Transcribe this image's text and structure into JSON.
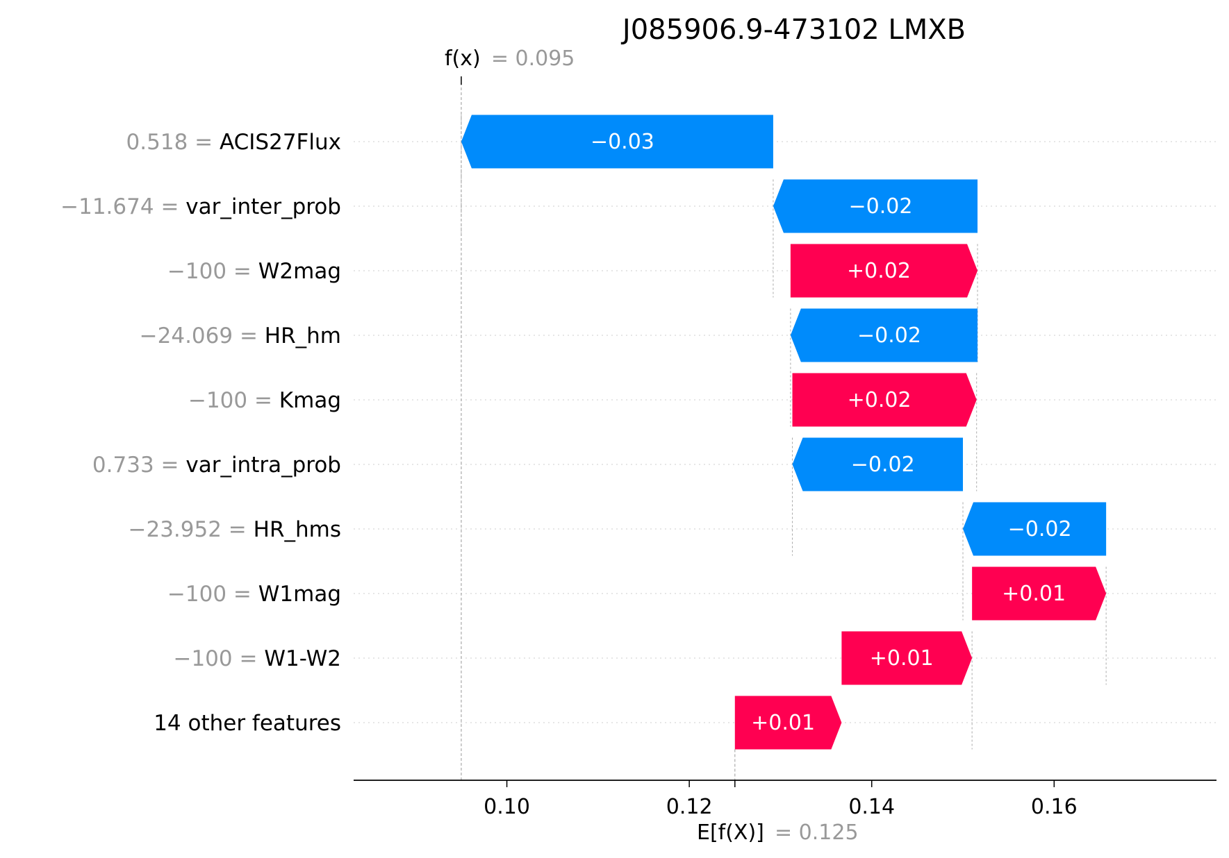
{
  "chart_data": {
    "type": "waterfall",
    "title": "J085906.9-473102 LMXB",
    "base_value": 0.125,
    "base_value_label": "= 0.125",
    "output_value": 0.095,
    "output_value_label": "= 0.095",
    "fx_symbol": "f(x)",
    "efx_symbol": "E[f(X)]",
    "xlim": [
      0.0832,
      0.1778
    ],
    "x_ticks": [
      0.1,
      0.12,
      0.14,
      0.16
    ],
    "x_tick_labels": [
      "0.10",
      "0.12",
      "0.14",
      "0.16"
    ],
    "features": [
      {
        "value_text": "0.518 =",
        "name": "ACIS27Flux",
        "start": 0.1292,
        "end": 0.095,
        "label": "−0.03"
      },
      {
        "value_text": "−11.674 =",
        "name": "var_inter_prob",
        "start": 0.1516,
        "end": 0.1292,
        "label": "−0.02"
      },
      {
        "value_text": "−100 =",
        "name": "W2mag",
        "start": 0.1311,
        "end": 0.1516,
        "label": "+0.02"
      },
      {
        "value_text": "−24.069 =",
        "name": "HR_hm",
        "start": 0.1516,
        "end": 0.1311,
        "label": "−0.02"
      },
      {
        "value_text": "−100 =",
        "name": "Kmag",
        "start": 0.1313,
        "end": 0.1515,
        "label": "+0.02"
      },
      {
        "value_text": "0.733 =",
        "name": "var_intra_prob",
        "start": 0.15,
        "end": 0.1313,
        "label": "−0.02"
      },
      {
        "value_text": "−23.952 =",
        "name": "HR_hms",
        "start": 0.1657,
        "end": 0.15,
        "label": "−0.02"
      },
      {
        "value_text": "−100 =",
        "name": "W1mag",
        "start": 0.151,
        "end": 0.1657,
        "label": "+0.01"
      },
      {
        "value_text": "−100 =",
        "name": "W1-W2",
        "start": 0.1367,
        "end": 0.151,
        "label": "+0.01"
      },
      {
        "value_text": "",
        "name": "14 other features",
        "start": 0.125,
        "end": 0.1367,
        "label": "+0.01"
      }
    ],
    "colors": {
      "positive": "#ff0051",
      "negative": "#008bfb",
      "value_text": "#999999",
      "gridline": "#cccccc"
    }
  }
}
